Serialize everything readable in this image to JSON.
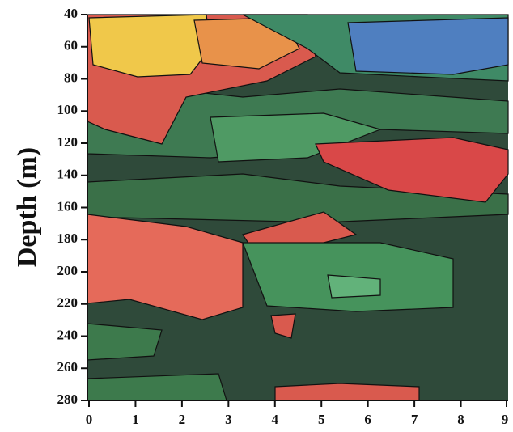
{
  "chart_data": {
    "type": "contour",
    "y_label": "Depth (m)",
    "xlim": [
      0,
      9
    ],
    "xticks": [
      0,
      1,
      2,
      3,
      4,
      5,
      6,
      7,
      8,
      9
    ],
    "ylim": [
      40,
      280
    ],
    "yticks": [
      40,
      60,
      80,
      100,
      120,
      140,
      160,
      180,
      200,
      220,
      240,
      260,
      280
    ],
    "y_inverted": true
  }
}
